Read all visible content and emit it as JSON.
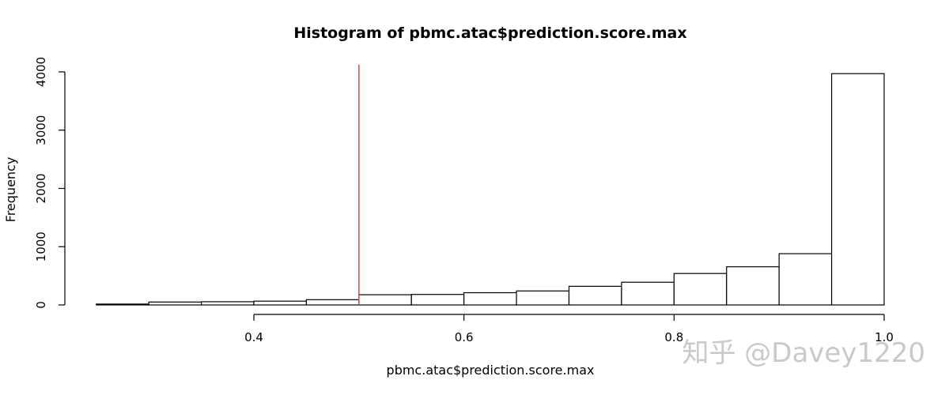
{
  "chart_data": {
    "type": "bar",
    "title": "Histogram of pbmc.atac$prediction.score.max",
    "xlabel": "pbmc.atac$prediction.score.max",
    "ylabel": "Frequency",
    "bins": [
      {
        "x0": 0.25,
        "x1": 0.3,
        "count": 15
      },
      {
        "x0": 0.3,
        "x1": 0.35,
        "count": 50
      },
      {
        "x0": 0.35,
        "x1": 0.4,
        "count": 55
      },
      {
        "x0": 0.4,
        "x1": 0.45,
        "count": 65
      },
      {
        "x0": 0.45,
        "x1": 0.5,
        "count": 90
      },
      {
        "x0": 0.5,
        "x1": 0.55,
        "count": 175
      },
      {
        "x0": 0.55,
        "x1": 0.6,
        "count": 180
      },
      {
        "x0": 0.6,
        "x1": 0.65,
        "count": 210
      },
      {
        "x0": 0.65,
        "x1": 0.7,
        "count": 240
      },
      {
        "x0": 0.7,
        "x1": 0.75,
        "count": 320
      },
      {
        "x0": 0.75,
        "x1": 0.8,
        "count": 390
      },
      {
        "x0": 0.8,
        "x1": 0.85,
        "count": 540
      },
      {
        "x0": 0.85,
        "x1": 0.9,
        "count": 655
      },
      {
        "x0": 0.9,
        "x1": 0.95,
        "count": 880
      },
      {
        "x0": 0.95,
        "x1": 1.0,
        "count": 3970
      }
    ],
    "xlim": [
      0.25,
      1.0
    ],
    "ylim": [
      0,
      4000
    ],
    "x_ticks": [
      0.4,
      0.6,
      0.8,
      1.0
    ],
    "x_tick_labels": [
      "0.4",
      "0.6",
      "0.8",
      "1.0"
    ],
    "y_ticks": [
      0,
      1000,
      2000,
      3000,
      4000
    ],
    "y_tick_labels": [
      "0",
      "1000",
      "2000",
      "3000",
      "4000"
    ],
    "reference_line": {
      "x": 0.5,
      "color": "#e0503c"
    },
    "grid": false,
    "legend": "none",
    "bar_fill": "#ffffff",
    "bar_stroke": "#000000"
  },
  "watermark": "知乎 @Davey1220"
}
